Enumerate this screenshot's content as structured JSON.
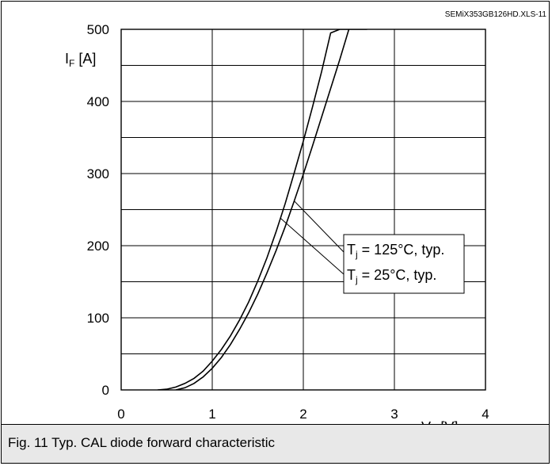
{
  "header": {
    "id_text": "SEMiX353GB126HD.XLS-11"
  },
  "caption": {
    "text": "Fig. 11 Typ. CAL diode forward characteristic"
  },
  "chart_data": {
    "type": "line",
    "title": "",
    "xlabel": {
      "main": "V",
      "sub": "F",
      "unit": " [V]"
    },
    "ylabel": {
      "main": "I",
      "sub": "F",
      "unit": " [A]"
    },
    "xlim": [
      0,
      4
    ],
    "ylim": [
      0,
      500
    ],
    "x_ticks": [
      "0",
      "1",
      "2",
      "3",
      "4"
    ],
    "y_ticks": [
      "0",
      "100",
      "200",
      "300",
      "400",
      "500"
    ],
    "x_grid_minor": 1,
    "y_grid_step": 50,
    "grid": true,
    "series": [
      {
        "name": "Tj = 25°C, typ.",
        "label": {
          "main": "T",
          "sub": "j",
          "rest": " = 25°C, typ."
        },
        "x": [
          0.4,
          0.5,
          0.6,
          0.7,
          0.8,
          0.9,
          1.0,
          1.1,
          1.2,
          1.3,
          1.4,
          1.5,
          1.6,
          1.7,
          1.8,
          1.9,
          2.0,
          2.1,
          2.2,
          2.3,
          2.4,
          2.5
        ],
        "y": [
          0,
          1,
          4,
          9,
          16,
          26,
          40,
          56,
          75,
          97,
          122,
          151,
          183,
          219,
          258,
          301,
          345,
          392,
          441,
          495,
          500,
          500
        ]
      },
      {
        "name": "Tj = 125°C, typ.",
        "label": {
          "main": "T",
          "sub": "j",
          "rest": " = 125°C, typ."
        },
        "x": [
          0.6,
          0.7,
          0.8,
          0.9,
          1.0,
          1.1,
          1.2,
          1.3,
          1.4,
          1.5,
          1.6,
          1.7,
          1.8,
          1.9,
          2.0,
          2.1,
          2.2,
          2.3,
          2.4,
          2.5,
          2.6,
          2.7
        ],
        "y": [
          0,
          3,
          9,
          18,
          30,
          45,
          63,
          84,
          107,
          133,
          162,
          193,
          226,
          262,
          299,
          338,
          378,
          418,
          458,
          500,
          500,
          500
        ]
      }
    ]
  }
}
